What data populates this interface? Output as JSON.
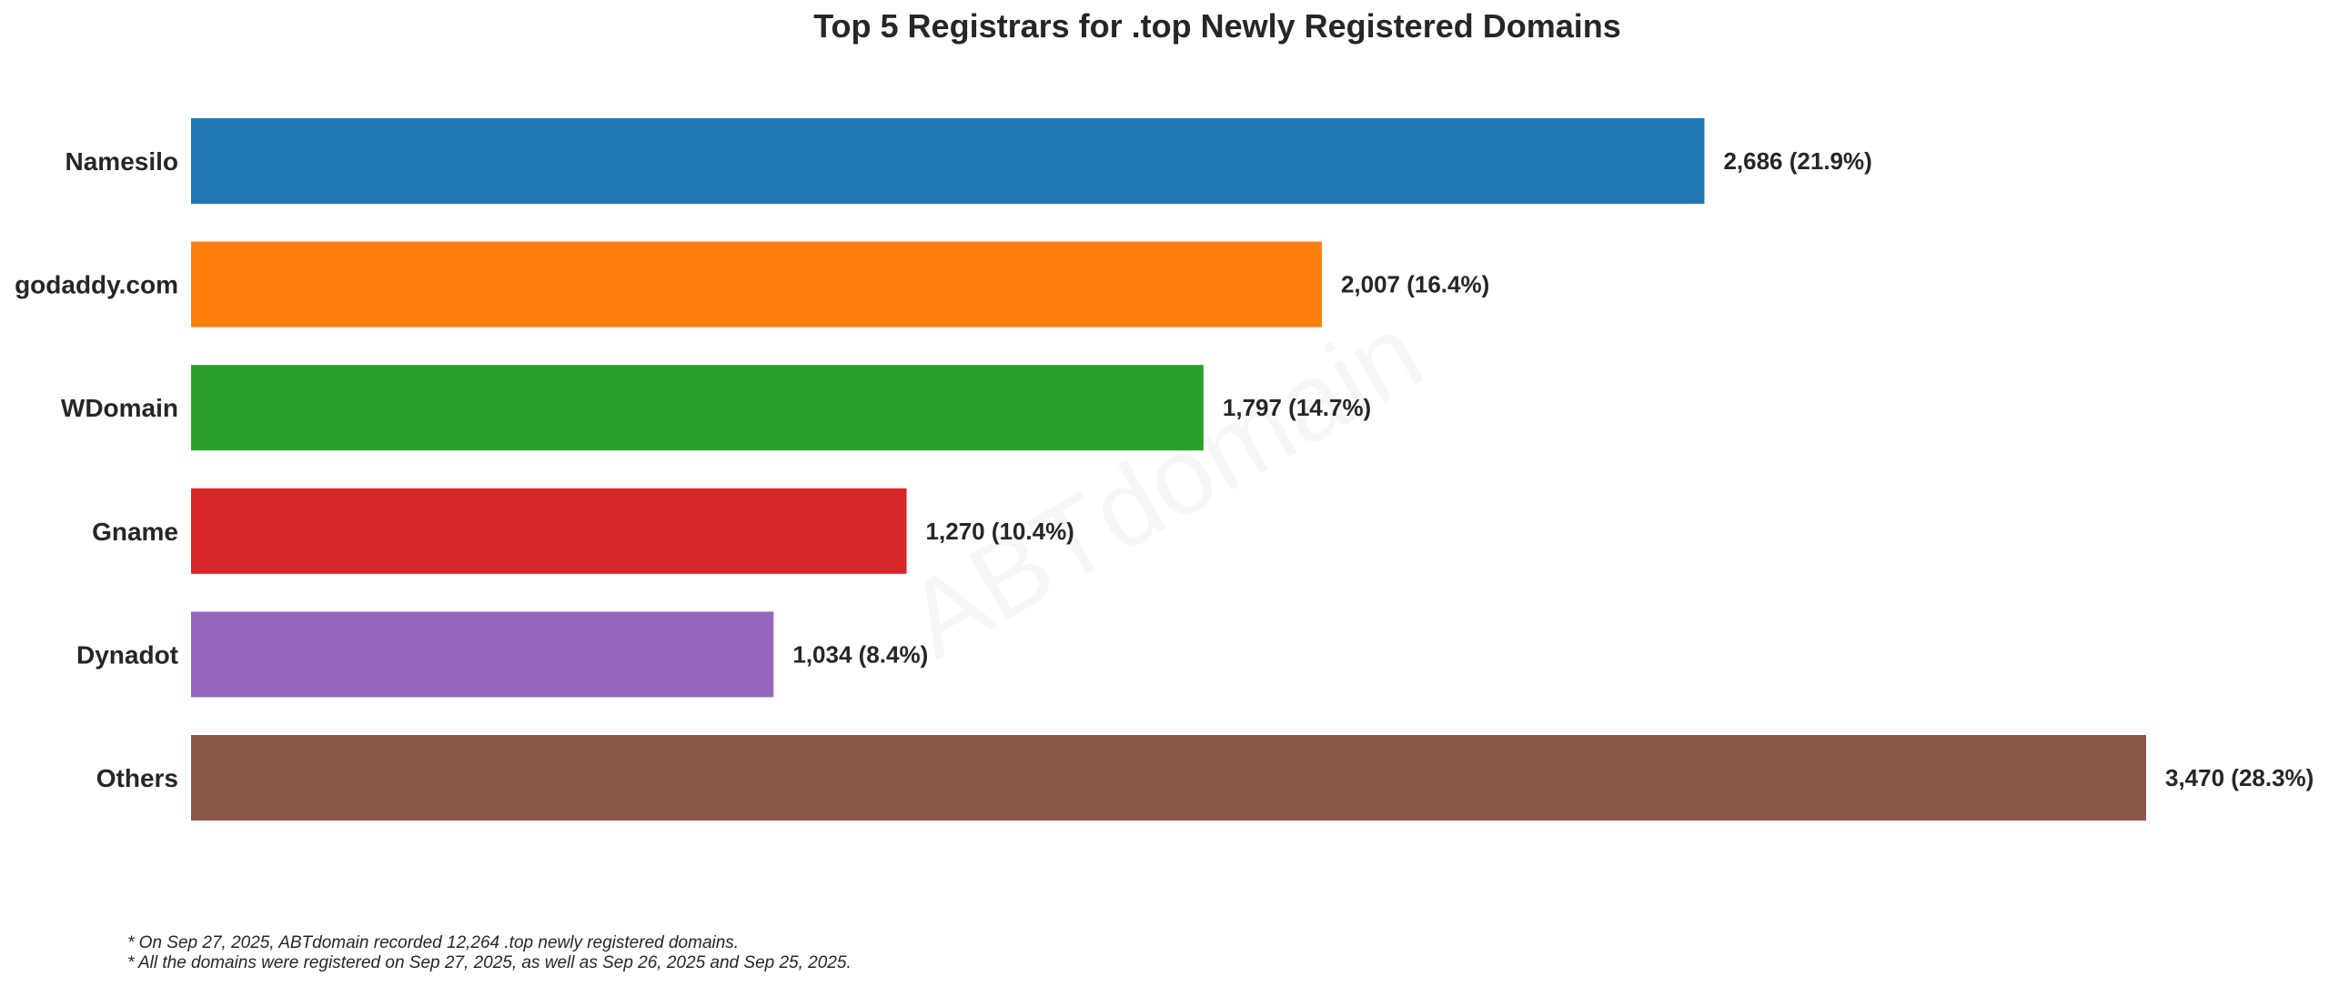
{
  "chart_data": {
    "type": "bar",
    "orientation": "horizontal",
    "title": "Top 5 Registrars for .top Newly Registered Domains",
    "categories": [
      "Namesilo",
      "godaddy.com",
      "WDomain",
      "Gname",
      "Dynadot",
      "Others"
    ],
    "values": [
      2686,
      2007,
      1797,
      1270,
      1034,
      3470
    ],
    "value_labels": [
      "2,686 (21.9%)",
      "2,007 (16.4%)",
      "1,797 (14.7%)",
      "1,270 (10.4%)",
      "1,034 (8.4%)",
      "3,470 (28.3%)"
    ],
    "colors": [
      "#1f77b4",
      "#ff7f0e",
      "#2ca02c",
      "#d62728",
      "#9467bd",
      "#8c564b"
    ],
    "xlim": [
      0,
      3470
    ],
    "grid": false,
    "xlabel": "",
    "ylabel": ""
  },
  "watermark": "ABTdomain",
  "footnotes": [
    "* On Sep 27, 2025, ABTdomain recorded 12,264 .top newly registered domains.",
    "* All the domains were registered on Sep 27, 2025, as well as Sep 26, 2025 and Sep 25, 2025."
  ]
}
